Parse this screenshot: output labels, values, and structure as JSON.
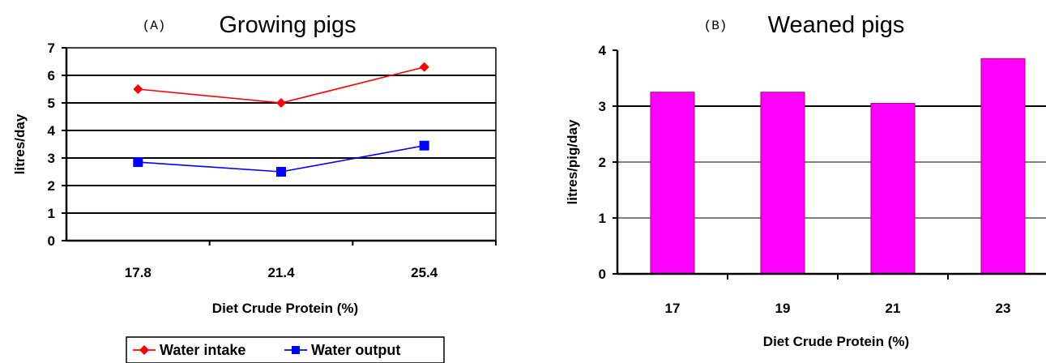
{
  "chart_data": [
    {
      "type": "line",
      "panel": "(A)",
      "title": "Growing pigs",
      "xlabel": "Diet Crude Protein (%)",
      "ylabel": "litres/day",
      "categories": [
        "17.8",
        "21.4",
        "25.4"
      ],
      "ylim": [
        0,
        7
      ],
      "yticks": [
        "0",
        "1",
        "2",
        "3",
        "4",
        "5",
        "6",
        "7"
      ],
      "grid": true,
      "legend_position": "bottom",
      "series": [
        {
          "name": "Water intake",
          "values": [
            5.5,
            5.0,
            6.3
          ],
          "color": "#ff0000",
          "marker": "diamond"
        },
        {
          "name": "Water output",
          "values": [
            2.85,
            2.5,
            3.45
          ],
          "color": "#0000ff",
          "marker": "square"
        }
      ]
    },
    {
      "type": "bar",
      "panel": "(B)",
      "title": "Weaned pigs",
      "xlabel": "Diet Crude Protein (%)",
      "ylabel": "litres/pig/day",
      "categories": [
        "17",
        "19",
        "21",
        "23"
      ],
      "values": [
        3.25,
        3.25,
        3.05,
        3.85
      ],
      "ylim": [
        0,
        4
      ],
      "yticks": [
        "0",
        "1",
        "2",
        "3",
        "4"
      ],
      "grid": true,
      "bar_color": "#ff00ff"
    }
  ]
}
